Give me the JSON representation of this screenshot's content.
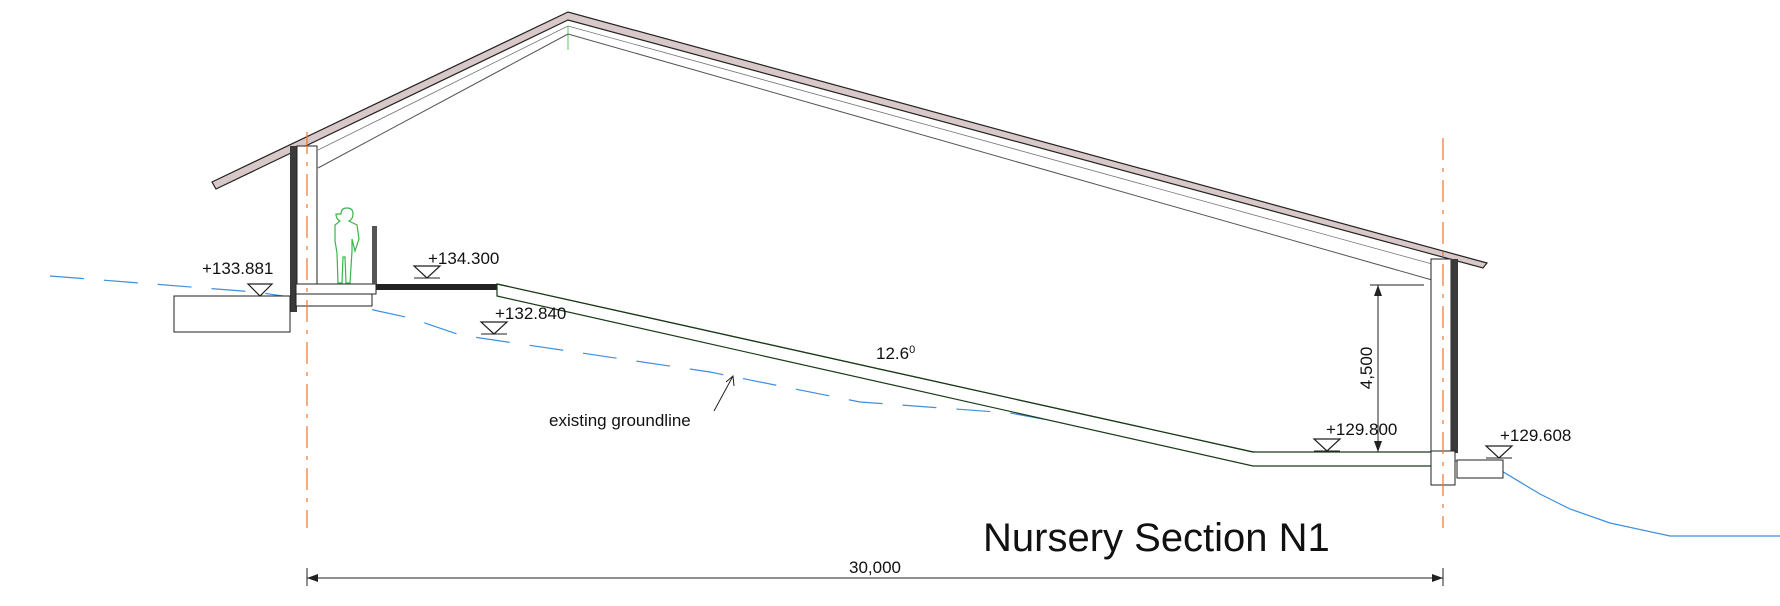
{
  "drawing": {
    "title": "Nursery Section N1",
    "levels": {
      "upper_left": "+133.881",
      "upper_floor": "+134.300",
      "ground_upper": "+132.840",
      "lower_floor": "+129.800",
      "ground_lower": "+129.608"
    },
    "slope_angle": "12.6",
    "slope_angle_unit": "0",
    "height_dim": "4,500",
    "width_dim": "30,000",
    "groundline_label": "existing groundline",
    "colors": {
      "roof_fill": "#d9c8c8",
      "groundline": "#3f8fdc",
      "gridline": "#e8772e",
      "figure": "#39b54a",
      "line": "#222222"
    }
  }
}
